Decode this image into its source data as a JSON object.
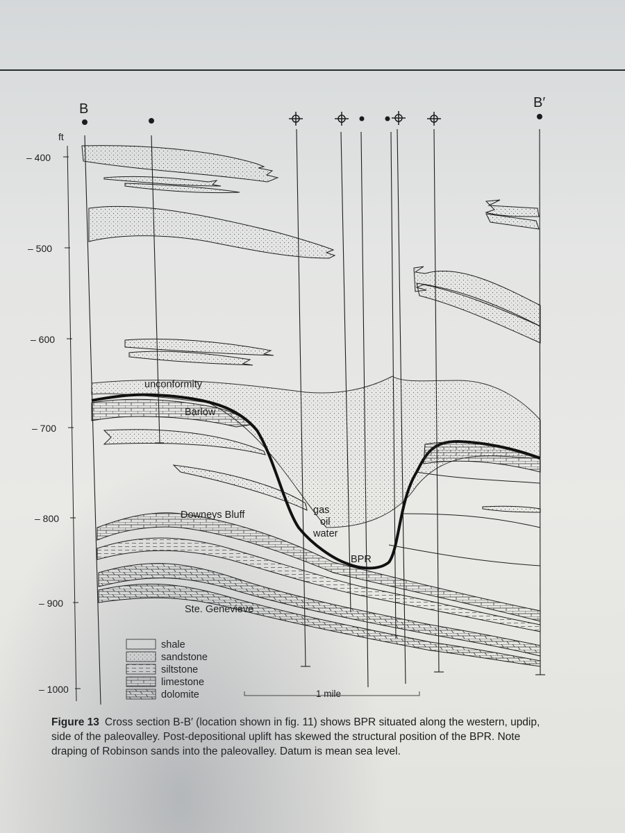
{
  "figure": {
    "section_start_label": "B",
    "section_end_label": "B′",
    "depth_unit": "ft",
    "depth_ticks": [
      "– 400",
      "– 500",
      "– 600",
      "– 700",
      "– 800",
      "– 900",
      "– 1000"
    ],
    "annotations": {
      "unconformity": "unconformity",
      "barlow": "Barlow",
      "downeys_bluff": "Downeys Bluff",
      "ste_genevieve": "Ste. Genevieve",
      "gas": "gas",
      "oil": "oil",
      "water": "water",
      "bpr": "BPR"
    },
    "legend": [
      "shale",
      "sandstone",
      "siltstone",
      "limestone",
      "dolomite"
    ],
    "scale_bar": "1 mile"
  },
  "caption": {
    "label": "Figure 13",
    "text": "Cross section B-B′ (location shown in fig. 11) shows BPR situated along the western, updip, side of the paleovalley. Post-depositional uplift has skewed the structural position of the BPR. Note draping of Robinson sands into the paleovalley. Datum is mean sea level."
  },
  "colors": {
    "ink": "#1c1c1c",
    "paper": "#e6e6e3",
    "top_rule": "#2a2a2a"
  }
}
